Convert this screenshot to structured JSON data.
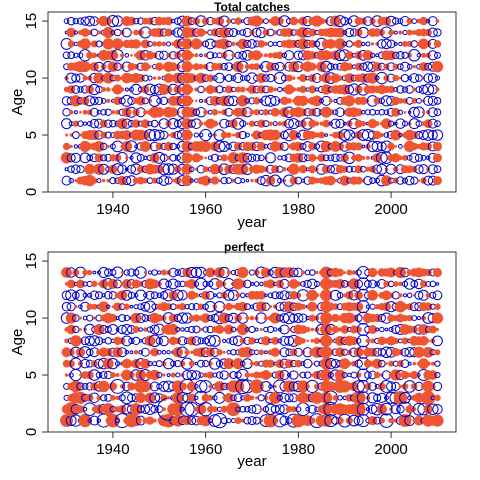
{
  "chart_data": [
    {
      "type": "scatter",
      "title": "Total catches",
      "xlabel": "year",
      "ylabel": "Age",
      "xlim": [
        1926,
        2014
      ],
      "ylim": [
        0,
        15.8
      ],
      "xticks": [
        1940,
        1960,
        1980,
        2000
      ],
      "yticks": [
        0,
        5,
        10,
        15
      ],
      "years": [
        1930,
        2010
      ],
      "ages": [
        1,
        15
      ],
      "positive_color": "#ee5533",
      "negative_color": "#0000cc",
      "highlights": [
        {
          "year": 1955,
          "ages": [
            1,
            15
          ],
          "sign": "neg",
          "size": 1.0
        },
        {
          "year": 1956,
          "ages": [
            1,
            15
          ],
          "sign": "pos",
          "size": 1.1
        },
        {
          "year": 1983,
          "ages": [
            1,
            15
          ],
          "sign": "pos",
          "size": 0.8
        },
        {
          "year": 1993,
          "ages": [
            1,
            15
          ],
          "sign": "pos",
          "size": 0.8
        },
        {
          "year": 2009,
          "ages": [
            1,
            15
          ],
          "sign": "neg",
          "size": 0.9
        }
      ]
    },
    {
      "type": "scatter",
      "title": "perfect",
      "xlabel": "year",
      "ylabel": "Age",
      "xlim": [
        1926,
        2014
      ],
      "ylim": [
        0,
        15.8
      ],
      "xticks": [
        1940,
        1960,
        1980,
        2000
      ],
      "yticks": [
        0,
        5,
        10,
        15
      ],
      "years": [
        1930,
        2010
      ],
      "ages": [
        1,
        14
      ],
      "positive_color": "#ee5533",
      "negative_color": "#0000cc",
      "highlights": [
        {
          "year": 1952,
          "ages": [
            2,
            2
          ],
          "sign": "neg",
          "size": 2.2
        },
        {
          "year": 1954,
          "ages": [
            1,
            4
          ],
          "sign": "pos",
          "size": 1.2
        },
        {
          "year": 1977,
          "ages": [
            1,
            14
          ],
          "sign": "neg",
          "size": 0.9
        },
        {
          "year": 1986,
          "ages": [
            1,
            14
          ],
          "sign": "pos",
          "size": 1.2
        },
        {
          "year": 1994,
          "ages": [
            1,
            14
          ],
          "sign": "neg",
          "size": 1.2
        }
      ]
    }
  ]
}
